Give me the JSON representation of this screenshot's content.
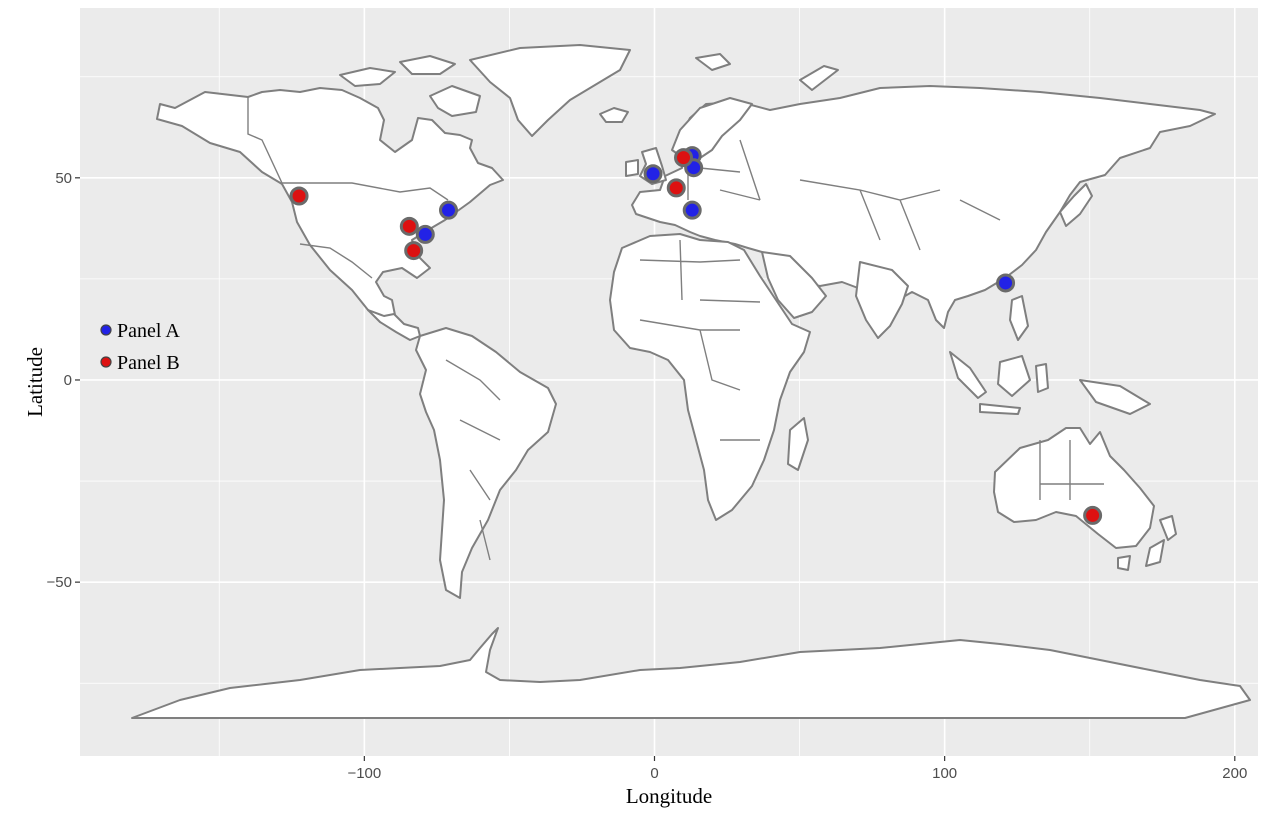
{
  "map": {
    "x_axis_title": "Longitude",
    "y_axis_title": "Latitude",
    "x_ticks": [
      -100,
      0,
      100,
      200
    ],
    "y_ticks": [
      50,
      0,
      -50
    ],
    "x_tick_labels": [
      "−100",
      "0",
      "100",
      "200"
    ],
    "y_tick_labels": [
      "50",
      "0",
      "−50"
    ],
    "xlim": [
      -198,
      208
    ],
    "ylim": [
      -93,
      92
    ],
    "panel_color": "#ebebeb",
    "grid_color": "#ffffff",
    "land_color": "#ffffff",
    "border_color": "#7f7f7f",
    "legend_position": "left-middle",
    "legend": [
      {
        "label": "Panel A",
        "color": "#2222e6"
      },
      {
        "label": "Panel B",
        "color": "#dd1111"
      }
    ]
  },
  "chart_data": {
    "type": "scatter",
    "title": "",
    "xlabel": "Longitude",
    "ylabel": "Latitude",
    "xlim": [
      -198,
      208
    ],
    "ylim": [
      -93,
      92
    ],
    "grid": true,
    "series": [
      {
        "name": "Panel A",
        "color": "#2222e6",
        "points": [
          {
            "x": -79,
            "y": 36
          },
          {
            "x": -71,
            "y": 42
          },
          {
            "x": -0.5,
            "y": 51
          },
          {
            "x": 13,
            "y": 55.5
          },
          {
            "x": 13.5,
            "y": 52.5
          },
          {
            "x": 13,
            "y": 42
          },
          {
            "x": 121,
            "y": 24
          }
        ]
      },
      {
        "name": "Panel B",
        "color": "#dd1111",
        "points": [
          {
            "x": -122.5,
            "y": 45.5
          },
          {
            "x": -84.5,
            "y": 38
          },
          {
            "x": -83,
            "y": 32
          },
          {
            "x": 7.5,
            "y": 47.5
          },
          {
            "x": 10,
            "y": 55
          },
          {
            "x": 151,
            "y": -33.5
          }
        ]
      }
    ]
  }
}
